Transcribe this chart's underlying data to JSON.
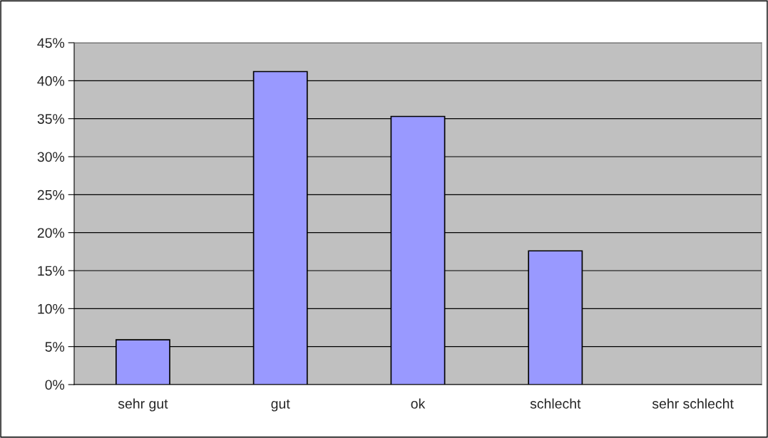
{
  "chart_data": {
    "type": "bar",
    "categories": [
      "sehr gut",
      "gut",
      "ok",
      "schlecht",
      "sehr schlecht"
    ],
    "values": [
      5.9,
      41.2,
      35.3,
      17.6,
      0
    ],
    "color": "#9999ff",
    "ylim": [
      0,
      45
    ],
    "yticks": [
      {
        "value": 0,
        "label": "0%"
      },
      {
        "value": 5,
        "label": "5%"
      },
      {
        "value": 10,
        "label": "10%"
      },
      {
        "value": 15,
        "label": "15%"
      },
      {
        "value": 20,
        "label": "20%"
      },
      {
        "value": 25,
        "label": "25%"
      },
      {
        "value": 30,
        "label": "30%"
      },
      {
        "value": 35,
        "label": "35%"
      },
      {
        "value": 40,
        "label": "40%"
      },
      {
        "value": 45,
        "label": "45%"
      }
    ],
    "grid": "y",
    "legend": false
  }
}
